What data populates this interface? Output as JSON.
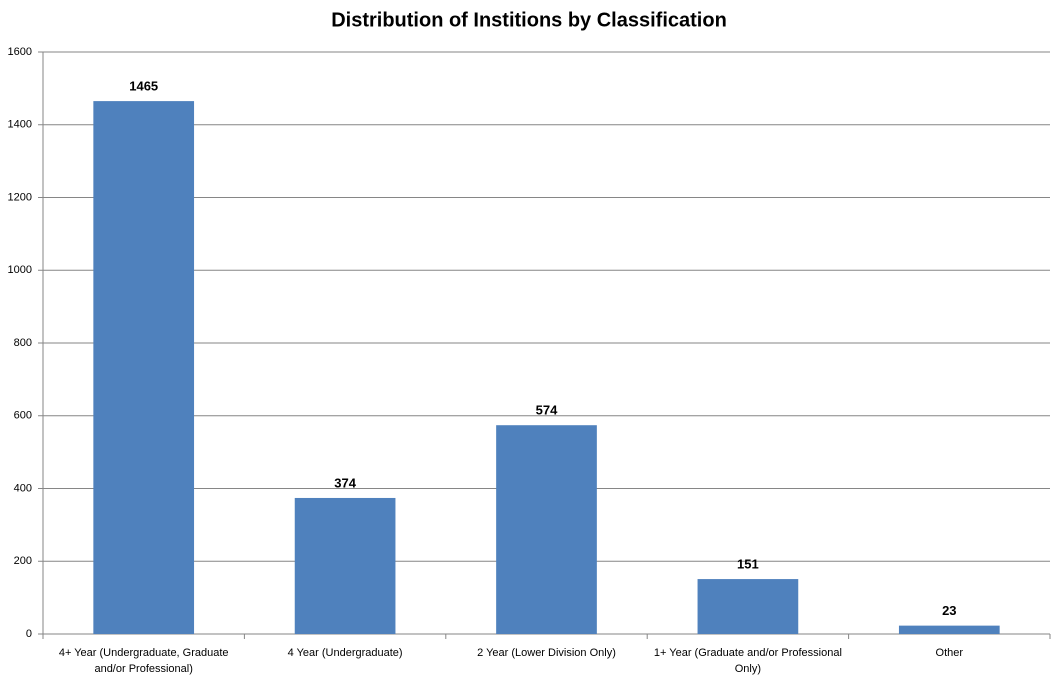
{
  "chart_data": {
    "type": "bar",
    "title": "Distribution of Institions by Classification",
    "categories": [
      "4+ Year (Undergraduate, Graduate and/or Professional)",
      "4 Year (Undergraduate)",
      "2 Year (Lower Division Only)",
      "1+ Year (Graduate and/or Professional Only)",
      "Other"
    ],
    "values": [
      1465,
      374,
      574,
      151,
      23
    ],
    "color": "#4f81bd",
    "ylim": [
      0,
      1600
    ],
    "yticks": [
      0,
      200,
      400,
      600,
      800,
      1000,
      1200,
      1400,
      1600
    ],
    "grid": true
  }
}
